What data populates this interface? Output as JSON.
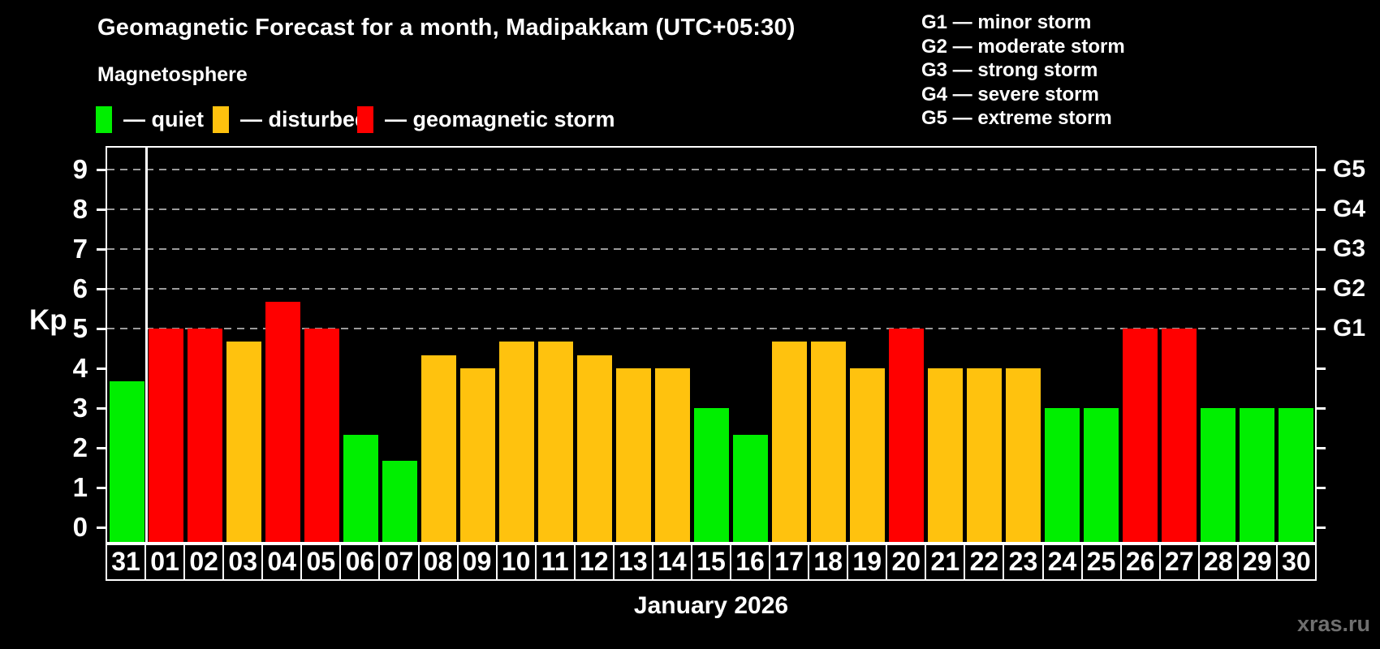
{
  "header": {
    "title": "Geomagnetic Forecast for a month, Madipakkam (UTC+05:30)",
    "subtitle": "Magnetosphere"
  },
  "bar_legend": {
    "items": [
      {
        "key": "quiet",
        "label": "— quiet",
        "color": "#00ef00"
      },
      {
        "key": "disturbed",
        "label": "— disturbed",
        "color": "#ffc20e"
      },
      {
        "key": "storm",
        "label": "— geomagnetic storm",
        "color": "#ff0000"
      }
    ]
  },
  "g_legend": {
    "items": [
      {
        "code": "G1",
        "label": "G1 — minor storm"
      },
      {
        "code": "G2",
        "label": "G2 — moderate storm"
      },
      {
        "code": "G3",
        "label": "G3 — strong storm"
      },
      {
        "code": "G4",
        "label": "G4 — severe storm"
      },
      {
        "code": "G5",
        "label": "G5 — extreme storm"
      }
    ]
  },
  "axes": {
    "y_label": "Kp",
    "y_ticks": [
      0,
      1,
      2,
      3,
      4,
      5,
      6,
      7,
      8,
      9
    ],
    "right_labels": [
      {
        "label": "G1",
        "kp": 5
      },
      {
        "label": "G2",
        "kp": 6
      },
      {
        "label": "G3",
        "kp": 7
      },
      {
        "label": "G4",
        "kp": 8
      },
      {
        "label": "G5",
        "kp": 9
      }
    ],
    "x_label": "January 2026"
  },
  "watermark": "xras.ru",
  "chart_data": {
    "type": "bar",
    "title": "Geomagnetic Forecast for a month, Madipakkam (UTC+05:30)",
    "xlabel": "January 2026",
    "ylabel": "Kp",
    "ylim": [
      0,
      9.6
    ],
    "grid": "dashed horizontal lines at Kp 5-9 (G1-G5 levels)",
    "grid_kp_levels": [
      5,
      6,
      7,
      8,
      9
    ],
    "legend_position": "top",
    "categories": [
      "31",
      "01",
      "02",
      "03",
      "04",
      "05",
      "06",
      "07",
      "08",
      "09",
      "10",
      "11",
      "12",
      "13",
      "14",
      "15",
      "16",
      "17",
      "18",
      "19",
      "20",
      "21",
      "22",
      "23",
      "24",
      "25",
      "26",
      "27",
      "28",
      "29",
      "30"
    ],
    "values": [
      3.67,
      5,
      5,
      4.67,
      5.67,
      5,
      2.33,
      1.67,
      4.33,
      4,
      4.67,
      4.67,
      4.33,
      4,
      4,
      3,
      2.33,
      4.67,
      4.67,
      4,
      5,
      4,
      4,
      4,
      3,
      3,
      5,
      5,
      3,
      3,
      3
    ],
    "statuses": [
      "quiet",
      "storm",
      "storm",
      "disturbed",
      "storm",
      "storm",
      "quiet",
      "quiet",
      "disturbed",
      "disturbed",
      "disturbed",
      "disturbed",
      "disturbed",
      "disturbed",
      "disturbed",
      "quiet",
      "quiet",
      "disturbed",
      "disturbed",
      "disturbed",
      "storm",
      "disturbed",
      "disturbed",
      "disturbed",
      "quiet",
      "quiet",
      "storm",
      "storm",
      "quiet",
      "quiet",
      "quiet"
    ],
    "status_colors": {
      "quiet": "#00ef00",
      "disturbed": "#ffc20e",
      "storm": "#ff0000"
    },
    "month_divider_after_category": "31"
  }
}
